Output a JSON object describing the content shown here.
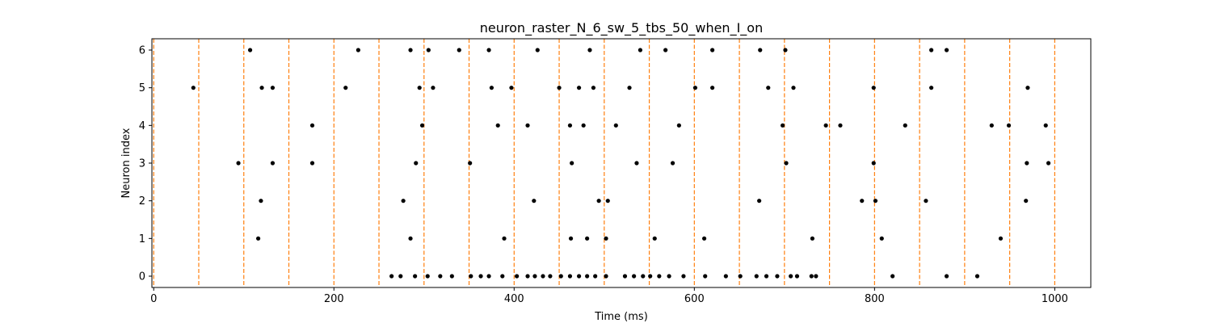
{
  "chart_data": {
    "type": "scatter",
    "title": "neuron_raster_N_6_sw_5_tbs_50_when_I_on",
    "xlabel": "Time (ms)",
    "ylabel": "Neuron index",
    "xlim": [
      -2,
      1040
    ],
    "ylim": [
      -0.3,
      6.3
    ],
    "xticks": [
      0,
      200,
      400,
      600,
      800,
      1000
    ],
    "yticks": [
      0,
      1,
      2,
      3,
      4,
      5,
      6
    ],
    "grid": false,
    "marker_color": "#000000",
    "vline_color": "#ff7f0e",
    "vlines": [
      0,
      50,
      100,
      150,
      200,
      250,
      300,
      350,
      400,
      450,
      500,
      550,
      600,
      650,
      700,
      750,
      800,
      850,
      900,
      950,
      1000
    ],
    "series": [
      {
        "neuron": 0,
        "x": [
          264,
          274,
          290,
          304,
          318,
          331,
          352,
          363,
          372,
          387,
          403,
          415,
          423,
          432,
          440,
          452,
          462,
          472,
          481,
          490,
          502,
          523,
          533,
          543,
          551,
          561,
          572,
          588,
          612,
          635,
          651,
          669,
          680,
          692,
          707,
          714,
          730,
          735,
          820,
          880,
          914
        ]
      },
      {
        "neuron": 1,
        "x": [
          116,
          285,
          389,
          463,
          481,
          502,
          556,
          611,
          731,
          808,
          940
        ]
      },
      {
        "neuron": 2,
        "x": [
          119,
          277,
          422,
          494,
          504,
          672,
          786,
          801,
          857,
          968
        ]
      },
      {
        "neuron": 3,
        "x": [
          94,
          132,
          176,
          291,
          351,
          464,
          536,
          576,
          702,
          799,
          969,
          993
        ]
      },
      {
        "neuron": 4,
        "x": [
          176,
          298,
          382,
          415,
          462,
          477,
          513,
          583,
          698,
          746,
          762,
          834,
          930,
          949,
          990
        ]
      },
      {
        "neuron": 5,
        "x": [
          44,
          120,
          132,
          213,
          295,
          310,
          375,
          397,
          450,
          472,
          488,
          528,
          601,
          620,
          682,
          710,
          799,
          863,
          970
        ]
      },
      {
        "neuron": 6,
        "x": [
          107,
          227,
          285,
          305,
          339,
          372,
          426,
          484,
          540,
          568,
          620,
          673,
          701,
          863,
          880
        ]
      }
    ]
  }
}
